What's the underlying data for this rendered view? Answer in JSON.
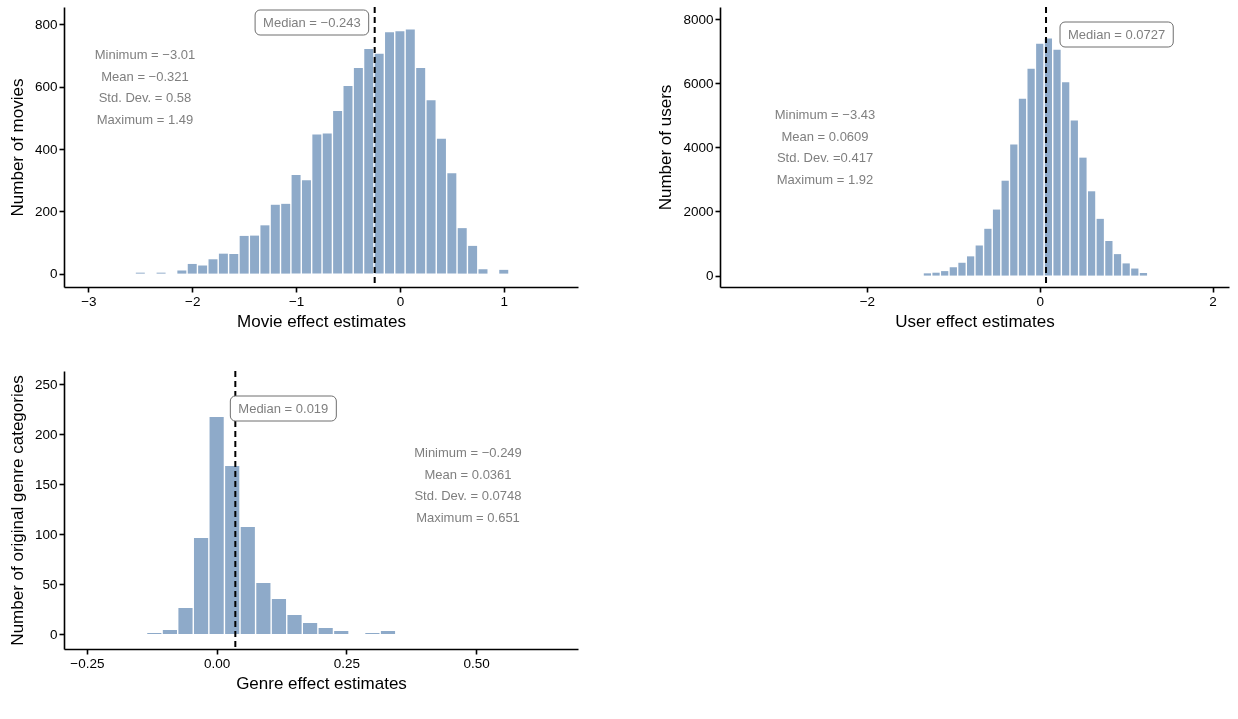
{
  "chart_data": [
    {
      "type": "histogram",
      "xlabel": "Movie effect estimates",
      "ylabel": "Number of movies",
      "color": "#8eaac9",
      "bins": [
        -2.55,
        -2.45,
        -2.35,
        -2.25,
        -2.15,
        -2.05,
        -1.95,
        -1.85,
        -1.75,
        -1.65,
        -1.55,
        -1.45,
        -1.35,
        -1.25,
        -1.15,
        -1.05,
        -0.95,
        -0.85,
        -0.75,
        -0.65,
        -0.55,
        -0.45,
        -0.35,
        -0.25,
        -0.15,
        -0.05,
        0.05,
        0.15,
        0.25,
        0.35,
        0.45,
        0.55,
        0.65,
        0.75,
        0.85,
        0.95,
        1.05
      ],
      "values": [
        3,
        0,
        3,
        0,
        10,
        31,
        26,
        46,
        64,
        63,
        121,
        122,
        155,
        221,
        224,
        317,
        300,
        447,
        450,
        522,
        602,
        660,
        721,
        706,
        775,
        778,
        784,
        660,
        557,
        433,
        322,
        146,
        89,
        14,
        0,
        12
      ],
      "xlim": [
        -3.235,
        1.715
      ],
      "xticks": [
        -3,
        -2,
        -1,
        0,
        1
      ],
      "ylim": [
        -43,
        856
      ],
      "yticks": [
        0,
        200,
        400,
        600,
        800
      ],
      "ref_lines": [
        {
          "axis": "x",
          "value": -0.243,
          "line_style": "dashed",
          "color": "#000000"
        }
      ],
      "annotations": [
        "Median = −0.243",
        "Minimum = −3.01",
        "Mean = −0.321",
        "Std. Dev. = 0.58",
        "Maximum = 1.49"
      ]
    },
    {
      "type": "histogram",
      "xlabel": "User effect estimates",
      "ylabel": "Number of users",
      "color": "#8eaac9",
      "bins": [
        -1.35,
        -1.25,
        -1.15,
        -1.05,
        -0.95,
        -0.85,
        -0.75,
        -0.65,
        -0.55,
        -0.45,
        -0.35,
        -0.25,
        -0.15,
        -0.05,
        0.05,
        0.15,
        0.25,
        0.35,
        0.45,
        0.55,
        0.65,
        0.75,
        0.85,
        0.95,
        1.05,
        1.15,
        1.25
      ],
      "values": [
        70,
        90,
        140,
        260,
        400,
        600,
        940,
        1460,
        2060,
        2960,
        4090,
        5520,
        6450,
        7230,
        7400,
        7050,
        6030,
        4840,
        3680,
        2630,
        1770,
        1080,
        670,
        380,
        220,
        80
      ],
      "xlim": [
        -3.7,
        2.19
      ],
      "xticks": [
        -2,
        0,
        2
      ],
      "ylim": [
        -356,
        8380
      ],
      "yticks": [
        0,
        2000,
        4000,
        6000,
        8000
      ],
      "ref_lines": [
        {
          "axis": "x",
          "value": 0.0727,
          "line_style": "dashed",
          "color": "#000000"
        }
      ],
      "annotations": [
        "Median = 0.0727",
        "Minimum = −3.43",
        "Mean = 0.0609",
        "Std. Dev. =0.417",
        "Maximum = 1.92"
      ]
    },
    {
      "type": "histogram",
      "xlabel": "Genre effect estimates",
      "ylabel": "Number of original genre categories",
      "color": "#8eaac9",
      "bins": [
        -0.135,
        -0.105,
        -0.075,
        -0.045,
        -0.015,
        0.015,
        0.045,
        0.075,
        0.105,
        0.135,
        0.165,
        0.195,
        0.225,
        0.255,
        0.285,
        0.315,
        0.345
      ],
      "values": [
        1,
        4,
        26,
        96,
        217,
        168,
        107,
        51,
        35,
        19,
        11,
        6,
        3,
        0,
        1,
        3
      ],
      "xlim": [
        -0.294,
        0.696
      ],
      "xticks": [
        -0.25,
        {
          "value": 0,
          "label": "0.00"
        },
        0.25,
        {
          "value": 0.5,
          "label": "0.50"
        }
      ],
      "ylim": [
        -15,
        263
      ],
      "yticks": [
        0,
        50,
        100,
        150,
        200,
        250
      ],
      "ref_lines": [
        {
          "axis": "x",
          "value": 0.036,
          "line_style": "dashed",
          "color": "#000000"
        }
      ],
      "annotations": [
        "Median = 0.019",
        "Minimum = −0.249",
        "Mean = 0.0361",
        "Std. Dev. = 0.0748",
        "Maximum = 0.651"
      ]
    }
  ]
}
